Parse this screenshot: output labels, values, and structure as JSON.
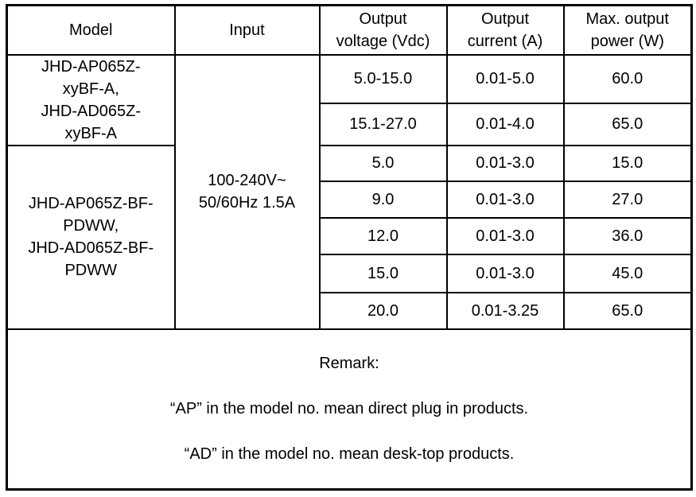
{
  "table": {
    "headers": {
      "model": "Model",
      "input": "Input",
      "voltage": "Output\nvoltage (Vdc)",
      "current": "Output\ncurrent (A)",
      "power": "Max. output\npower (W)"
    },
    "model_groups": [
      "JHD-AP065Z-\nxyBF-A,\nJHD-AD065Z-\nxyBF-A",
      "JHD-AP065Z-BF-\nPDWW,\nJHD-AD065Z-BF-\nPDWW"
    ],
    "input_value": "100-240V~\n50/60Hz 1.5A",
    "rows": [
      {
        "voltage": "5.0-15.0",
        "current": "0.01-5.0",
        "power": "60.0"
      },
      {
        "voltage": "15.1-27.0",
        "current": "0.01-4.0",
        "power": "65.0"
      },
      {
        "voltage": "5.0",
        "current": "0.01-3.0",
        "power": "15.0"
      },
      {
        "voltage": "9.0",
        "current": "0.01-3.0",
        "power": "27.0"
      },
      {
        "voltage": "12.0",
        "current": "0.01-3.0",
        "power": "36.0"
      },
      {
        "voltage": "15.0",
        "current": "0.01-3.0",
        "power": "45.0"
      },
      {
        "voltage": "20.0",
        "current": "0.01-3.25",
        "power": "65.0"
      }
    ],
    "remark": {
      "title": "Remark:",
      "lines": [
        "“AP” in the model no. mean direct plug in products.",
        "“AD” in the model no. mean desk-top products."
      ]
    }
  },
  "colors": {
    "border": "#000000",
    "text": "#000000",
    "background": "#ffffff"
  }
}
